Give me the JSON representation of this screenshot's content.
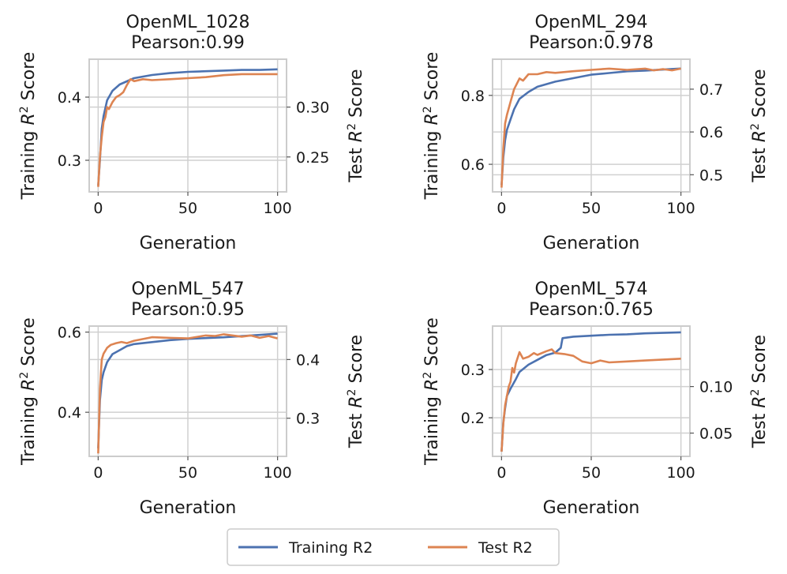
{
  "colors": {
    "train": "#4c72b0",
    "test": "#dd8452"
  },
  "legend": {
    "train_label": "Training R2",
    "test_label": "Test R2"
  },
  "chart_data": [
    {
      "type": "line",
      "title_line1": "OpenML_1028",
      "title_line2": "Pearson:0.99",
      "xlabel": "Generation",
      "ylabel_left": "Training R² Score",
      "ylabel_right": "Test R² Score",
      "xlim": [
        -5,
        105
      ],
      "ylim_left": [
        0.25,
        0.46
      ],
      "ylim_right": [
        0.215,
        0.348
      ],
      "x_ticks": [
        0,
        50,
        100
      ],
      "y_left_ticks": [
        0.3,
        0.4
      ],
      "y_right_ticks": [
        0.25,
        0.3
      ],
      "y_left_tick_labels": [
        "0.3",
        "0.4"
      ],
      "y_right_tick_labels": [
        "0.25",
        "0.30"
      ],
      "series": [
        {
          "name": "Training R2",
          "axis": "left",
          "x": [
            0,
            1,
            2,
            3,
            5,
            8,
            12,
            16,
            20,
            30,
            40,
            50,
            60,
            70,
            80,
            90,
            100
          ],
          "values": [
            0.26,
            0.3,
            0.35,
            0.37,
            0.395,
            0.41,
            0.42,
            0.425,
            0.43,
            0.435,
            0.438,
            0.44,
            0.441,
            0.442,
            0.443,
            0.443,
            0.444
          ]
        },
        {
          "name": "Test R2",
          "axis": "right",
          "x": [
            0,
            1,
            2,
            3,
            4,
            5,
            6,
            8,
            10,
            12,
            14,
            16,
            18,
            20,
            25,
            30,
            40,
            50,
            60,
            70,
            80,
            90,
            100
          ],
          "values": [
            0.22,
            0.25,
            0.27,
            0.285,
            0.29,
            0.3,
            0.298,
            0.305,
            0.31,
            0.312,
            0.315,
            0.322,
            0.328,
            0.326,
            0.328,
            0.327,
            0.328,
            0.329,
            0.33,
            0.332,
            0.333,
            0.333,
            0.333
          ]
        }
      ]
    },
    {
      "type": "line",
      "title_line1": "OpenML_294",
      "title_line2": "Pearson:0.978",
      "xlabel": "Generation",
      "ylabel_left": "Training R² Score",
      "ylabel_right": "Test R² Score",
      "xlim": [
        -5,
        105
      ],
      "ylim_left": [
        0.52,
        0.905
      ],
      "ylim_right": [
        0.46,
        0.77
      ],
      "x_ticks": [
        0,
        50,
        100
      ],
      "y_left_ticks": [
        0.6,
        0.8
      ],
      "y_right_ticks": [
        0.5,
        0.6,
        0.7
      ],
      "y_left_tick_labels": [
        "0.6",
        "0.8"
      ],
      "y_right_tick_labels": [
        "0.5",
        "0.6",
        "0.7"
      ],
      "series": [
        {
          "name": "Training R2",
          "axis": "left",
          "x": [
            0,
            1,
            2,
            3,
            5,
            7,
            10,
            15,
            20,
            30,
            40,
            50,
            60,
            70,
            80,
            90,
            100
          ],
          "values": [
            0.54,
            0.62,
            0.67,
            0.7,
            0.73,
            0.76,
            0.79,
            0.81,
            0.825,
            0.84,
            0.85,
            0.86,
            0.865,
            0.87,
            0.872,
            0.875,
            0.878
          ]
        },
        {
          "name": "Test R2",
          "axis": "right",
          "x": [
            0,
            1,
            2,
            3,
            5,
            7,
            10,
            12,
            15,
            20,
            25,
            30,
            40,
            50,
            60,
            70,
            80,
            85,
            90,
            95,
            100
          ],
          "values": [
            0.47,
            0.56,
            0.62,
            0.64,
            0.67,
            0.7,
            0.725,
            0.72,
            0.735,
            0.735,
            0.74,
            0.738,
            0.742,
            0.745,
            0.748,
            0.745,
            0.748,
            0.744,
            0.747,
            0.744,
            0.748
          ]
        }
      ]
    },
    {
      "type": "line",
      "title_line1": "OpenML_547",
      "title_line2": "Pearson:0.95",
      "xlabel": "Generation",
      "ylabel_left": "Training R² Score",
      "ylabel_right": "Test R² Score",
      "xlim": [
        -5,
        105
      ],
      "ylim_left": [
        0.29,
        0.615
      ],
      "ylim_right": [
        0.235,
        0.457
      ],
      "x_ticks": [
        0,
        50,
        100
      ],
      "y_left_ticks": [
        0.4,
        0.6
      ],
      "y_right_ticks": [
        0.3,
        0.4
      ],
      "y_left_tick_labels": [
        "0.4",
        "0.6"
      ],
      "y_right_tick_labels": [
        "0.3",
        "0.4"
      ],
      "series": [
        {
          "name": "Training R2",
          "axis": "left",
          "x": [
            0,
            1,
            2,
            3,
            5,
            8,
            12,
            16,
            20,
            30,
            40,
            50,
            60,
            70,
            80,
            90,
            100
          ],
          "values": [
            0.31,
            0.43,
            0.48,
            0.5,
            0.525,
            0.545,
            0.555,
            0.565,
            0.57,
            0.575,
            0.58,
            0.583,
            0.585,
            0.587,
            0.59,
            0.593,
            0.596
          ]
        },
        {
          "name": "Test R2",
          "axis": "right",
          "x": [
            0,
            1,
            2,
            3,
            5,
            7,
            10,
            13,
            16,
            20,
            25,
            30,
            40,
            50,
            60,
            65,
            70,
            80,
            85,
            90,
            95,
            100
          ],
          "values": [
            0.24,
            0.35,
            0.4,
            0.41,
            0.42,
            0.425,
            0.428,
            0.43,
            0.428,
            0.432,
            0.435,
            0.438,
            0.437,
            0.436,
            0.441,
            0.44,
            0.443,
            0.439,
            0.441,
            0.437,
            0.44,
            0.436
          ]
        }
      ]
    },
    {
      "type": "line",
      "title_line1": "OpenML_574",
      "title_line2": "Pearson:0.765",
      "xlabel": "Generation",
      "ylabel_left": "Training R² Score",
      "ylabel_right": "Test R² Score",
      "xlim": [
        -5,
        105
      ],
      "ylim_left": [
        0.12,
        0.39
      ],
      "ylim_right": [
        0.025,
        0.165
      ],
      "x_ticks": [
        0,
        50,
        100
      ],
      "y_left_ticks": [
        0.2,
        0.3
      ],
      "y_right_ticks": [
        0.05,
        0.1
      ],
      "y_left_tick_labels": [
        "0.2",
        "0.3"
      ],
      "y_right_tick_labels": [
        "0.05",
        "0.10"
      ],
      "series": [
        {
          "name": "Training R2",
          "axis": "left",
          "x": [
            0,
            1,
            2,
            3,
            5,
            8,
            10,
            15,
            20,
            25,
            30,
            33,
            34,
            40,
            50,
            60,
            70,
            80,
            90,
            100
          ],
          "values": [
            0.13,
            0.19,
            0.22,
            0.245,
            0.26,
            0.28,
            0.295,
            0.31,
            0.32,
            0.33,
            0.335,
            0.345,
            0.365,
            0.368,
            0.37,
            0.372,
            0.373,
            0.375,
            0.376,
            0.377
          ]
        },
        {
          "name": "Test R2",
          "axis": "right",
          "x": [
            0,
            1,
            2,
            3,
            4,
            5,
            6,
            7,
            8,
            10,
            12,
            15,
            18,
            20,
            25,
            28,
            30,
            35,
            40,
            45,
            50,
            55,
            60,
            70,
            80,
            90,
            100
          ],
          "values": [
            0.03,
            0.06,
            0.08,
            0.09,
            0.1,
            0.105,
            0.12,
            0.115,
            0.125,
            0.137,
            0.13,
            0.132,
            0.136,
            0.134,
            0.138,
            0.14,
            0.136,
            0.135,
            0.133,
            0.127,
            0.125,
            0.128,
            0.126,
            0.127,
            0.128,
            0.129,
            0.13
          ]
        }
      ]
    }
  ]
}
